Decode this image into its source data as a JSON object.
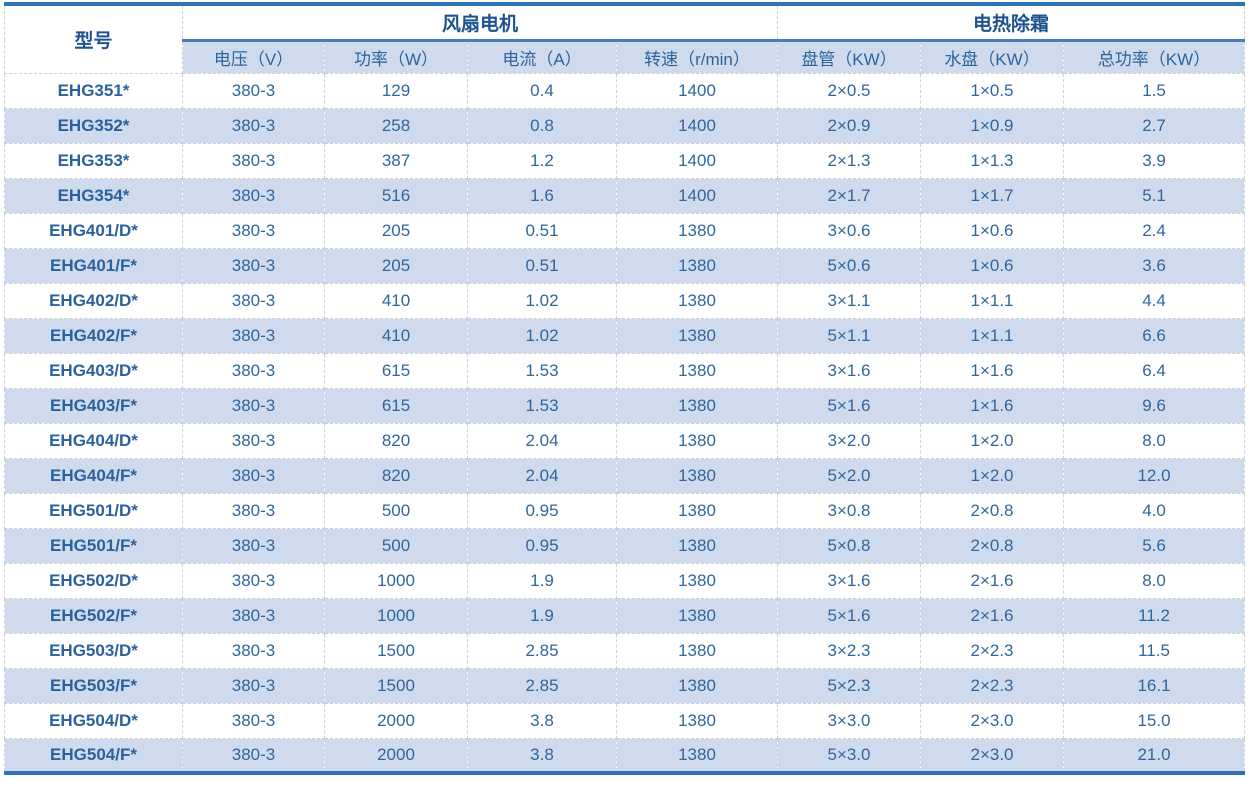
{
  "table": {
    "model_header": "型号",
    "groups": [
      {
        "label": "风扇电机",
        "columns": [
          "电压（V）",
          "功率（W）",
          "电流（A）",
          "转速（r/min）"
        ]
      },
      {
        "label": "电热除霜",
        "columns": [
          "盘管（KW）",
          "水盘（KW）",
          "总功率（KW）"
        ]
      }
    ],
    "rows": [
      [
        "EHG351*",
        "380-3",
        "129",
        "0.4",
        "1400",
        "2×0.5",
        "1×0.5",
        "1.5"
      ],
      [
        "EHG352*",
        "380-3",
        "258",
        "0.8",
        "1400",
        "2×0.9",
        "1×0.9",
        "2.7"
      ],
      [
        "EHG353*",
        "380-3",
        "387",
        "1.2",
        "1400",
        "2×1.3",
        "1×1.3",
        "3.9"
      ],
      [
        "EHG354*",
        "380-3",
        "516",
        "1.6",
        "1400",
        "2×1.7",
        "1×1.7",
        "5.1"
      ],
      [
        "EHG401/D*",
        "380-3",
        "205",
        "0.51",
        "1380",
        "3×0.6",
        "1×0.6",
        "2.4"
      ],
      [
        "EHG401/F*",
        "380-3",
        "205",
        "0.51",
        "1380",
        "5×0.6",
        "1×0.6",
        "3.6"
      ],
      [
        "EHG402/D*",
        "380-3",
        "410",
        "1.02",
        "1380",
        "3×1.1",
        "1×1.1",
        "4.4"
      ],
      [
        "EHG402/F*",
        "380-3",
        "410",
        "1.02",
        "1380",
        "5×1.1",
        "1×1.1",
        "6.6"
      ],
      [
        "EHG403/D*",
        "380-3",
        "615",
        "1.53",
        "1380",
        "3×1.6",
        "1×1.6",
        "6.4"
      ],
      [
        "EHG403/F*",
        "380-3",
        "615",
        "1.53",
        "1380",
        "5×1.6",
        "1×1.6",
        "9.6"
      ],
      [
        "EHG404/D*",
        "380-3",
        "820",
        "2.04",
        "1380",
        "3×2.0",
        "1×2.0",
        "8.0"
      ],
      [
        "EHG404/F*",
        "380-3",
        "820",
        "2.04",
        "1380",
        "5×2.0",
        "1×2.0",
        "12.0"
      ],
      [
        "EHG501/D*",
        "380-3",
        "500",
        "0.95",
        "1380",
        "3×0.8",
        "2×0.8",
        "4.0"
      ],
      [
        "EHG501/F*",
        "380-3",
        "500",
        "0.95",
        "1380",
        "5×0.8",
        "2×0.8",
        "5.6"
      ],
      [
        "EHG502/D*",
        "380-3",
        "1000",
        "1.9",
        "1380",
        "3×1.6",
        "2×1.6",
        "8.0"
      ],
      [
        "EHG502/F*",
        "380-3",
        "1000",
        "1.9",
        "1380",
        "5×1.6",
        "2×1.6",
        "11.2"
      ],
      [
        "EHG503/D*",
        "380-3",
        "1500",
        "2.85",
        "1380",
        "3×2.3",
        "2×2.3",
        "11.5"
      ],
      [
        "EHG503/F*",
        "380-3",
        "1500",
        "2.85",
        "1380",
        "5×2.3",
        "2×2.3",
        "16.1"
      ],
      [
        "EHG504/D*",
        "380-3",
        "2000",
        "3.8",
        "1380",
        "3×3.0",
        "2×3.0",
        "15.0"
      ],
      [
        "EHG504/F*",
        "380-3",
        "2000",
        "3.8",
        "1380",
        "5×3.0",
        "2×3.0",
        "21.0"
      ]
    ],
    "colors": {
      "frame_border": "#2e74b5",
      "group_underline": "#4a7ab8",
      "row_shade": "#cfdbec",
      "data_text": "#30669e",
      "header_text": "#1d538e"
    }
  }
}
